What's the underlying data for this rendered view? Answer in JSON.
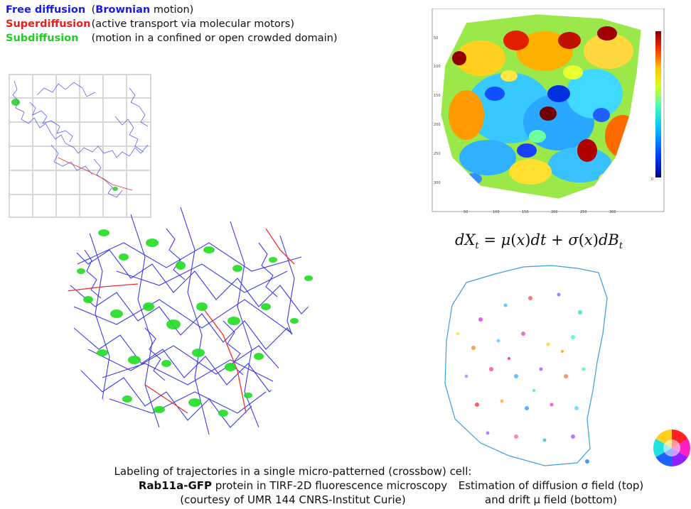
{
  "legend": [
    {
      "term": "Free diffusion",
      "desc_open": "(",
      "desc_bold": "Brownian",
      "desc_rest": " motion)",
      "color": "#1a1ae6"
    },
    {
      "term": "Superdiffusion",
      "desc": "(active transport via molecular motors)",
      "color": "#e81e1e"
    },
    {
      "term": "Subdiffusion",
      "desc": "(motion in a confined or open crowded domain)",
      "color": "#22cc22"
    }
  ],
  "left_caption": {
    "line1": "Labeling of trajectories in a single micro-patterned (crossbow) cell:",
    "line2_bold": "Rab11a-GFP",
    "line2_rest": " protein in TIRF-2D fluorescence microscopy",
    "line3": "(courtesy of UMR 144 CNRS-Institut Curie)"
  },
  "heatmap": {
    "y_ticks": [
      "50",
      "100",
      "150",
      "200",
      "250",
      "300"
    ],
    "x_ticks": [
      "50",
      "100",
      "150",
      "200",
      "250",
      "300"
    ],
    "colorbar_min_label": "0"
  },
  "equation": "dX_t = μ(x)dt + σ(x)dB_t",
  "right_caption": {
    "line1": "Estimation of diffusion σ field (top)",
    "line2": "and drift μ field (bottom)"
  }
}
